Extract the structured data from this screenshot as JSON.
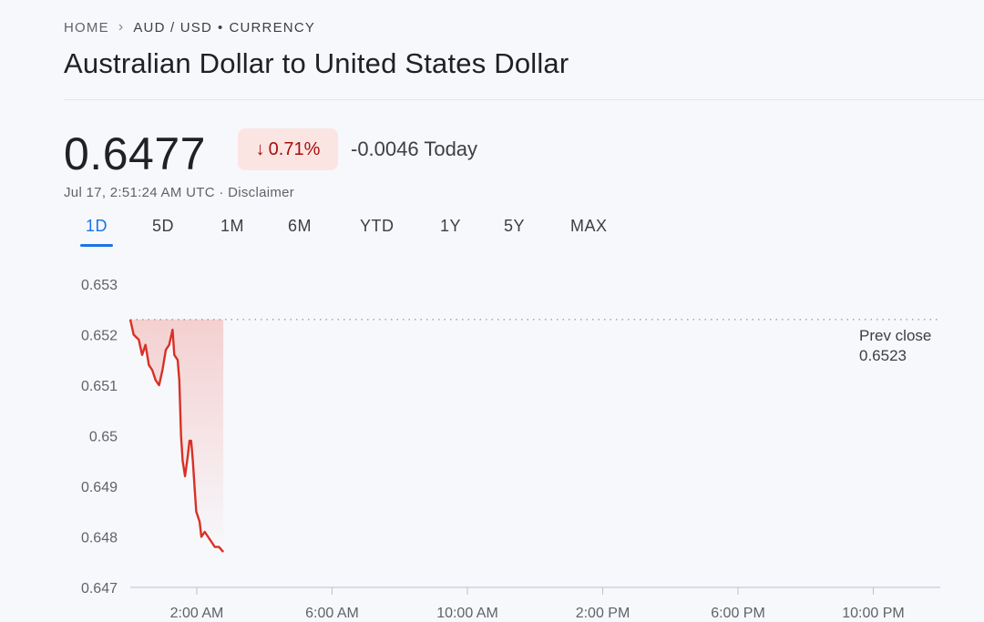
{
  "breadcrumb": {
    "home": "HOME",
    "separator": "›",
    "pair": "AUD / USD",
    "dot": "•",
    "category": "CURRENCY"
  },
  "title": "Australian Dollar to United States Dollar",
  "quote": {
    "price": "0.6477",
    "arrow": "↓",
    "change_pct": "0.71%",
    "change_abs": "-0.0046 Today",
    "timestamp": "Jul 17, 2:51:24 AM UTC",
    "separator": "·",
    "disclaimer": "Disclaimer"
  },
  "colors": {
    "accent": "#1a73e8",
    "negative": "#d93025",
    "negative_bg": "#fbe5e3"
  },
  "tabs": [
    {
      "label": "1D",
      "active": true
    },
    {
      "label": "5D",
      "active": false
    },
    {
      "label": "1M",
      "active": false
    },
    {
      "label": "6M",
      "active": false
    },
    {
      "label": "YTD",
      "active": false
    },
    {
      "label": "1Y",
      "active": false
    },
    {
      "label": "5Y",
      "active": false
    },
    {
      "label": "MAX",
      "active": false
    }
  ],
  "prev_close": {
    "label": "Prev close",
    "value": "0.6523"
  },
  "chart_data": {
    "type": "area",
    "title": "",
    "xlabel": "",
    "ylabel": "",
    "x_ticks": [
      "2:00 AM",
      "6:00 AM",
      "10:00 AM",
      "2:00 PM",
      "6:00 PM",
      "10:00 PM"
    ],
    "y_ticks": [
      "0.653",
      "0.652",
      "0.651",
      "0.65",
      "0.649",
      "0.648",
      "0.647"
    ],
    "ylim": [
      0.647,
      0.653
    ],
    "xlim_hours": [
      0,
      24
    ],
    "reference_line": 0.6523,
    "series": [
      {
        "points": [
          [
            0.0,
            0.6523
          ],
          [
            0.1,
            0.652
          ],
          [
            0.25,
            0.6519
          ],
          [
            0.35,
            0.6516
          ],
          [
            0.45,
            0.6518
          ],
          [
            0.55,
            0.6514
          ],
          [
            0.65,
            0.6513
          ],
          [
            0.75,
            0.6511
          ],
          [
            0.85,
            0.651
          ],
          [
            0.95,
            0.6513
          ],
          [
            1.05,
            0.6517
          ],
          [
            1.15,
            0.6518
          ],
          [
            1.25,
            0.6521
          ],
          [
            1.3,
            0.6516
          ],
          [
            1.4,
            0.6515
          ],
          [
            1.45,
            0.6511
          ],
          [
            1.5,
            0.65
          ],
          [
            1.55,
            0.6495
          ],
          [
            1.62,
            0.6492
          ],
          [
            1.7,
            0.6496
          ],
          [
            1.75,
            0.6499
          ],
          [
            1.8,
            0.6499
          ],
          [
            1.85,
            0.6495
          ],
          [
            1.9,
            0.649
          ],
          [
            1.95,
            0.6485
          ],
          [
            2.05,
            0.6483
          ],
          [
            2.1,
            0.648
          ],
          [
            2.2,
            0.6481
          ],
          [
            2.3,
            0.648
          ],
          [
            2.4,
            0.6479
          ],
          [
            2.5,
            0.6478
          ],
          [
            2.62,
            0.6478
          ],
          [
            2.75,
            0.6477
          ]
        ]
      }
    ]
  }
}
